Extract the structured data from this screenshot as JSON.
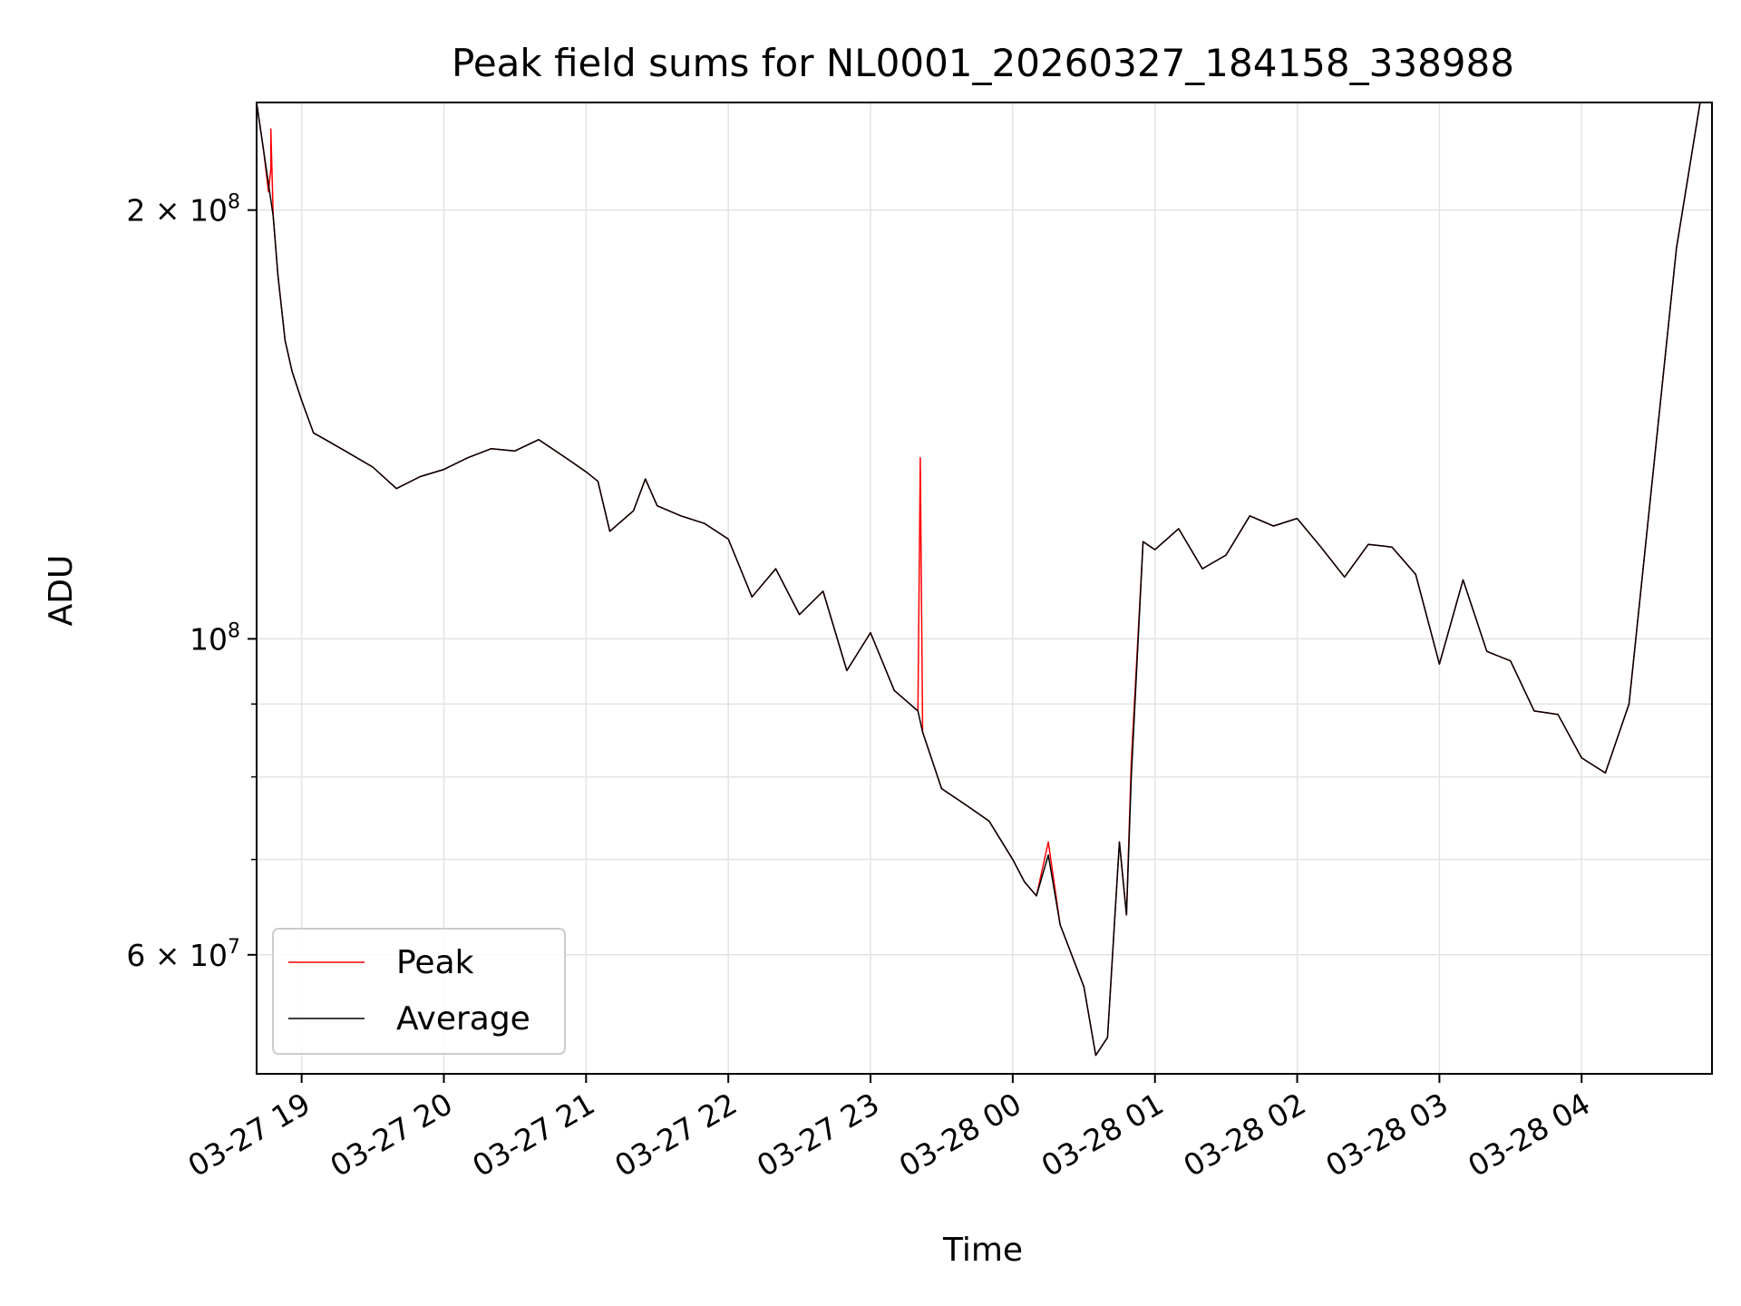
{
  "chart_data": {
    "type": "line",
    "title": "Peak field sums for NL0001_20260327_184158_338988",
    "xlabel": "Time",
    "ylabel": "ADU",
    "x_range": [
      "2026-03-27 18:41",
      "2026-03-28 04:55"
    ],
    "y_range": [
      49500000,
      238000000
    ],
    "y_scale": "log",
    "grid": true,
    "legend": {
      "position": "lower-left"
    },
    "x_ticks": [
      {
        "t": "2026-03-27 19:00",
        "label": "03-27 19"
      },
      {
        "t": "2026-03-27 20:00",
        "label": "03-27 20"
      },
      {
        "t": "2026-03-27 21:00",
        "label": "03-27 21"
      },
      {
        "t": "2026-03-27 22:00",
        "label": "03-27 22"
      },
      {
        "t": "2026-03-27 23:00",
        "label": "03-27 23"
      },
      {
        "t": "2026-03-28 00:00",
        "label": "03-28 00"
      },
      {
        "t": "2026-03-28 01:00",
        "label": "03-28 01"
      },
      {
        "t": "2026-03-28 02:00",
        "label": "03-28 02"
      },
      {
        "t": "2026-03-28 03:00",
        "label": "03-28 03"
      },
      {
        "t": "2026-03-28 04:00",
        "label": "03-28 04"
      }
    ],
    "y_ticks": [
      {
        "value": 200000000,
        "mant": "2",
        "exp": "8"
      },
      {
        "value": 100000000,
        "mant": "",
        "exp": "8"
      },
      {
        "value": 60000000,
        "mant": "6",
        "exp": "7"
      }
    ],
    "y_minor_ticks": [
      70000000,
      80000000,
      90000000
    ],
    "series": [
      {
        "name": "Peak",
        "color": "#ff0000",
        "points": [
          [
            "2026-03-27 18:41",
            238000000
          ],
          [
            "2026-03-27 18:44",
            220000000
          ],
          [
            "2026-03-27 18:46",
            206000000
          ],
          [
            "2026-03-27 18:47",
            214000000
          ],
          [
            "2026-03-27 18:47",
            228000000
          ],
          [
            "2026-03-27 18:48",
            198000000
          ],
          [
            "2026-03-27 18:50",
            180000000
          ],
          [
            "2026-03-27 18:53",
            162000000
          ],
          [
            "2026-03-27 18:56",
            154000000
          ],
          [
            "2026-03-27 19:00",
            147000000
          ],
          [
            "2026-03-27 19:05",
            139500000
          ],
          [
            "2026-03-27 19:10",
            138000000
          ],
          [
            "2026-03-27 19:20",
            135000000
          ],
          [
            "2026-03-27 19:30",
            132000000
          ],
          [
            "2026-03-27 19:40",
            127500000
          ],
          [
            "2026-03-27 19:50",
            130000000
          ],
          [
            "2026-03-27 20:00",
            131500000
          ],
          [
            "2026-03-27 20:10",
            134000000
          ],
          [
            "2026-03-27 20:20",
            136000000
          ],
          [
            "2026-03-27 20:30",
            135500000
          ],
          [
            "2026-03-27 20:40",
            138000000
          ],
          [
            "2026-03-27 20:50",
            134500000
          ],
          [
            "2026-03-27 21:00",
            131000000
          ],
          [
            "2026-03-27 21:05",
            129000000
          ],
          [
            "2026-03-27 21:10",
            119000000
          ],
          [
            "2026-03-27 21:20",
            123000000
          ],
          [
            "2026-03-27 21:25",
            129500000
          ],
          [
            "2026-03-27 21:30",
            124000000
          ],
          [
            "2026-03-27 21:40",
            122000000
          ],
          [
            "2026-03-27 21:50",
            120500000
          ],
          [
            "2026-03-27 22:00",
            117500000
          ],
          [
            "2026-03-27 22:10",
            107000000
          ],
          [
            "2026-03-27 22:20",
            112000000
          ],
          [
            "2026-03-27 22:30",
            104000000
          ],
          [
            "2026-03-27 22:40",
            108000000
          ],
          [
            "2026-03-27 22:50",
            95000000
          ],
          [
            "2026-03-27 23:00",
            101000000
          ],
          [
            "2026-03-27 23:10",
            92000000
          ],
          [
            "2026-03-27 23:20",
            89000000
          ],
          [
            "2026-03-27 23:21",
            134000000
          ],
          [
            "2026-03-27 23:22",
            86000000
          ],
          [
            "2026-03-27 23:30",
            78500000
          ],
          [
            "2026-03-27 23:40",
            76500000
          ],
          [
            "2026-03-27 23:50",
            74500000
          ],
          [
            "2026-03-28 00:00",
            70000000
          ],
          [
            "2026-03-28 00:05",
            67500000
          ],
          [
            "2026-03-28 00:10",
            66000000
          ],
          [
            "2026-03-28 00:15",
            72000000
          ],
          [
            "2026-03-28 00:20",
            63000000
          ],
          [
            "2026-03-28 00:30",
            57000000
          ],
          [
            "2026-03-28 00:35",
            51000000
          ],
          [
            "2026-03-28 00:40",
            52500000
          ],
          [
            "2026-03-28 00:45",
            72000000
          ],
          [
            "2026-03-28 00:48",
            64000000
          ],
          [
            "2026-03-28 00:50",
            82000000
          ],
          [
            "2026-03-28 00:55",
            117000000
          ],
          [
            "2026-03-28 01:00",
            115500000
          ],
          [
            "2026-03-28 01:10",
            119500000
          ],
          [
            "2026-03-28 01:20",
            112000000
          ],
          [
            "2026-03-28 01:30",
            114500000
          ],
          [
            "2026-03-28 01:40",
            122000000
          ],
          [
            "2026-03-28 01:50",
            120000000
          ],
          [
            "2026-03-28 02:00",
            121500000
          ],
          [
            "2026-03-28 02:10",
            116000000
          ],
          [
            "2026-03-28 02:20",
            110500000
          ],
          [
            "2026-03-28 02:30",
            116500000
          ],
          [
            "2026-03-28 02:40",
            116000000
          ],
          [
            "2026-03-28 02:50",
            111000000
          ],
          [
            "2026-03-28 03:00",
            96000000
          ],
          [
            "2026-03-28 03:10",
            110000000
          ],
          [
            "2026-03-28 03:20",
            98000000
          ],
          [
            "2026-03-28 03:30",
            96500000
          ],
          [
            "2026-03-28 03:40",
            89000000
          ],
          [
            "2026-03-28 03:50",
            88500000
          ],
          [
            "2026-03-28 04:00",
            82500000
          ],
          [
            "2026-03-28 04:10",
            80500000
          ],
          [
            "2026-03-28 04:20",
            90000000
          ],
          [
            "2026-03-28 04:30",
            130000000
          ],
          [
            "2026-03-28 04:40",
            188000000
          ],
          [
            "2026-03-28 04:50",
            238000000
          ],
          [
            "2026-03-28 04:55",
            238000000
          ]
        ]
      },
      {
        "name": "Average",
        "color": "#000000",
        "points": [
          [
            "2026-03-27 18:41",
            238000000
          ],
          [
            "2026-03-27 18:44",
            220000000
          ],
          [
            "2026-03-27 18:48",
            198000000
          ],
          [
            "2026-03-27 18:50",
            180000000
          ],
          [
            "2026-03-27 18:53",
            162000000
          ],
          [
            "2026-03-27 18:56",
            154000000
          ],
          [
            "2026-03-27 19:00",
            147000000
          ],
          [
            "2026-03-27 19:05",
            139500000
          ],
          [
            "2026-03-27 19:10",
            138000000
          ],
          [
            "2026-03-27 19:20",
            135000000
          ],
          [
            "2026-03-27 19:30",
            132000000
          ],
          [
            "2026-03-27 19:40",
            127500000
          ],
          [
            "2026-03-27 19:50",
            130000000
          ],
          [
            "2026-03-27 20:00",
            131500000
          ],
          [
            "2026-03-27 20:10",
            134000000
          ],
          [
            "2026-03-27 20:20",
            136000000
          ],
          [
            "2026-03-27 20:30",
            135500000
          ],
          [
            "2026-03-27 20:40",
            138000000
          ],
          [
            "2026-03-27 20:50",
            134500000
          ],
          [
            "2026-03-27 21:00",
            131000000
          ],
          [
            "2026-03-27 21:05",
            129000000
          ],
          [
            "2026-03-27 21:10",
            119000000
          ],
          [
            "2026-03-27 21:20",
            123000000
          ],
          [
            "2026-03-27 21:25",
            129500000
          ],
          [
            "2026-03-27 21:30",
            124000000
          ],
          [
            "2026-03-27 21:40",
            122000000
          ],
          [
            "2026-03-27 21:50",
            120500000
          ],
          [
            "2026-03-27 22:00",
            117500000
          ],
          [
            "2026-03-27 22:10",
            107000000
          ],
          [
            "2026-03-27 22:20",
            112000000
          ],
          [
            "2026-03-27 22:30",
            104000000
          ],
          [
            "2026-03-27 22:40",
            108000000
          ],
          [
            "2026-03-27 22:50",
            95000000
          ],
          [
            "2026-03-27 23:00",
            101000000
          ],
          [
            "2026-03-27 23:10",
            92000000
          ],
          [
            "2026-03-27 23:20",
            89000000
          ],
          [
            "2026-03-27 23:22",
            86000000
          ],
          [
            "2026-03-27 23:30",
            78500000
          ],
          [
            "2026-03-27 23:40",
            76500000
          ],
          [
            "2026-03-27 23:50",
            74500000
          ],
          [
            "2026-03-28 00:00",
            70000000
          ],
          [
            "2026-03-28 00:05",
            67500000
          ],
          [
            "2026-03-28 00:10",
            66000000
          ],
          [
            "2026-03-28 00:15",
            70500000
          ],
          [
            "2026-03-28 00:20",
            63000000
          ],
          [
            "2026-03-28 00:30",
            57000000
          ],
          [
            "2026-03-28 00:35",
            51000000
          ],
          [
            "2026-03-28 00:40",
            52500000
          ],
          [
            "2026-03-28 00:45",
            72000000
          ],
          [
            "2026-03-28 00:48",
            64000000
          ],
          [
            "2026-03-28 00:50",
            80000000
          ],
          [
            "2026-03-28 00:55",
            117000000
          ],
          [
            "2026-03-28 01:00",
            115500000
          ],
          [
            "2026-03-28 01:10",
            119500000
          ],
          [
            "2026-03-28 01:20",
            112000000
          ],
          [
            "2026-03-28 01:30",
            114500000
          ],
          [
            "2026-03-28 01:40",
            122000000
          ],
          [
            "2026-03-28 01:50",
            120000000
          ],
          [
            "2026-03-28 02:00",
            121500000
          ],
          [
            "2026-03-28 02:10",
            116000000
          ],
          [
            "2026-03-28 02:20",
            110500000
          ],
          [
            "2026-03-28 02:30",
            116500000
          ],
          [
            "2026-03-28 02:40",
            116000000
          ],
          [
            "2026-03-28 02:50",
            111000000
          ],
          [
            "2026-03-28 03:00",
            96000000
          ],
          [
            "2026-03-28 03:10",
            110000000
          ],
          [
            "2026-03-28 03:20",
            98000000
          ],
          [
            "2026-03-28 03:30",
            96500000
          ],
          [
            "2026-03-28 03:40",
            89000000
          ],
          [
            "2026-03-28 03:50",
            88500000
          ],
          [
            "2026-03-28 04:00",
            82500000
          ],
          [
            "2026-03-28 04:10",
            80500000
          ],
          [
            "2026-03-28 04:20",
            90000000
          ],
          [
            "2026-03-28 04:30",
            130000000
          ],
          [
            "2026-03-28 04:40",
            188000000
          ],
          [
            "2026-03-28 04:50",
            238000000
          ],
          [
            "2026-03-28 04:55",
            238000000
          ]
        ]
      }
    ]
  }
}
